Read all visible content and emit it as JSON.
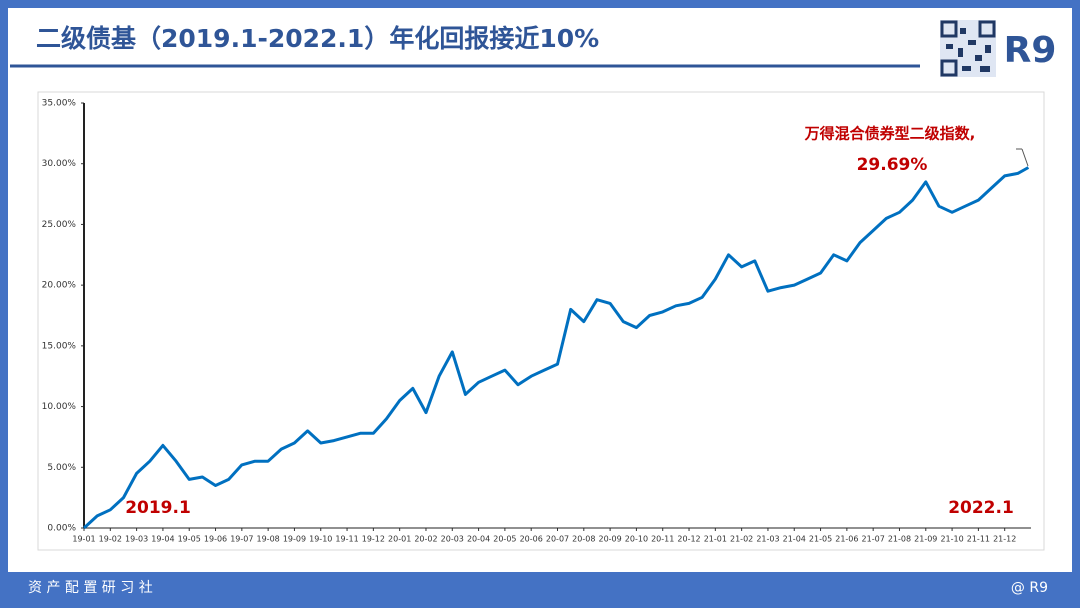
{
  "header": {
    "title": "二级债基（2019.1-2022.1）年化回报接近10%",
    "logo": "R9"
  },
  "footer": {
    "left": "资 产 配 置 研 习 社",
    "right": "@ R9"
  },
  "chart_data": {
    "type": "line",
    "color": "#0070c0",
    "annotations": [
      "万得混合债券型二级指数,",
      "29.69%",
      "2019.1",
      "2022.1"
    ],
    "x": [
      0,
      0.5,
      1,
      1.5,
      2,
      2.5,
      3,
      3.5,
      4,
      4.5,
      5,
      5.5,
      6,
      6.5,
      7,
      7.5,
      8,
      8.5,
      9,
      9.5,
      10,
      10.5,
      11,
      11.5,
      12,
      12.5,
      13,
      13.5,
      14,
      14.5,
      15,
      15.5,
      16,
      16.5,
      17,
      17.5,
      18,
      18.5,
      19,
      19.5,
      20,
      20.5,
      21,
      21.5,
      22,
      22.5,
      23,
      23.5,
      24,
      24.5,
      25,
      25.5,
      26,
      26.5,
      27,
      27.5,
      28,
      28.5,
      29,
      29.5,
      30,
      30.5,
      31,
      31.5,
      32,
      32.5,
      33,
      33.5,
      34,
      34.5,
      35,
      35.5,
      35.9
    ],
    "values": [
      0.0,
      1.0,
      1.5,
      2.5,
      4.5,
      5.5,
      6.8,
      5.5,
      4.0,
      4.2,
      3.5,
      4.0,
      5.2,
      5.5,
      5.5,
      6.5,
      7.0,
      8.0,
      7.0,
      7.2,
      7.5,
      7.8,
      7.8,
      9.0,
      10.5,
      11.5,
      9.5,
      12.5,
      14.5,
      11.0,
      12.0,
      12.5,
      13.0,
      11.8,
      12.5,
      13.0,
      13.5,
      18.0,
      17.0,
      18.8,
      18.5,
      17.0,
      16.5,
      17.5,
      17.8,
      18.3,
      18.5,
      19.0,
      20.5,
      22.5,
      21.5,
      22.0,
      19.5,
      19.8,
      20.0,
      20.5,
      21.0,
      22.5,
      22.0,
      23.5,
      24.5,
      25.5,
      26.0,
      27.0,
      28.5,
      26.5,
      26.0,
      26.5,
      27.0,
      28.0,
      29.0,
      29.2,
      29.69
    ],
    "xlim": [
      0,
      36
    ],
    "xticks": [
      {
        "value": 0,
        "label": "19-01"
      },
      {
        "value": 1,
        "label": "19-02"
      },
      {
        "value": 2,
        "label": "19-03"
      },
      {
        "value": 3,
        "label": "19-04"
      },
      {
        "value": 4,
        "label": "19-05"
      },
      {
        "value": 5,
        "label": "19-06"
      },
      {
        "value": 6,
        "label": "19-07"
      },
      {
        "value": 7,
        "label": "19-08"
      },
      {
        "value": 8,
        "label": "19-09"
      },
      {
        "value": 9,
        "label": "19-10"
      },
      {
        "value": 10,
        "label": "19-11"
      },
      {
        "value": 11,
        "label": "19-12"
      },
      {
        "value": 12,
        "label": "20-01"
      },
      {
        "value": 13,
        "label": "20-02"
      },
      {
        "value": 14,
        "label": "20-03"
      },
      {
        "value": 15,
        "label": "20-04"
      },
      {
        "value": 16,
        "label": "20-05"
      },
      {
        "value": 17,
        "label": "20-06"
      },
      {
        "value": 18,
        "label": "20-07"
      },
      {
        "value": 19,
        "label": "20-08"
      },
      {
        "value": 20,
        "label": "20-09"
      },
      {
        "value": 21,
        "label": "20-10"
      },
      {
        "value": 22,
        "label": "20-11"
      },
      {
        "value": 23,
        "label": "20-12"
      },
      {
        "value": 24,
        "label": "21-01"
      },
      {
        "value": 25,
        "label": "21-02"
      },
      {
        "value": 26,
        "label": "21-03"
      },
      {
        "value": 27,
        "label": "21-04"
      },
      {
        "value": 28,
        "label": "21-05"
      },
      {
        "value": 29,
        "label": "21-06"
      },
      {
        "value": 30,
        "label": "21-07"
      },
      {
        "value": 31,
        "label": "21-08"
      },
      {
        "value": 32,
        "label": "21-09"
      },
      {
        "value": 33,
        "label": "21-10"
      },
      {
        "value": 34,
        "label": "21-11"
      },
      {
        "value": 35,
        "label": "21-12"
      }
    ],
    "ylim": [
      0,
      35
    ],
    "yticks": [
      {
        "value": 0,
        "label": "0.00%"
      },
      {
        "value": 5,
        "label": "5.00%"
      },
      {
        "value": 10,
        "label": "10.00%"
      },
      {
        "value": 15,
        "label": "15.00%"
      },
      {
        "value": 20,
        "label": "20.00%"
      },
      {
        "value": 25,
        "label": "25.00%"
      },
      {
        "value": 30,
        "label": "30.00%"
      },
      {
        "value": 35,
        "label": "35.00%"
      }
    ]
  }
}
